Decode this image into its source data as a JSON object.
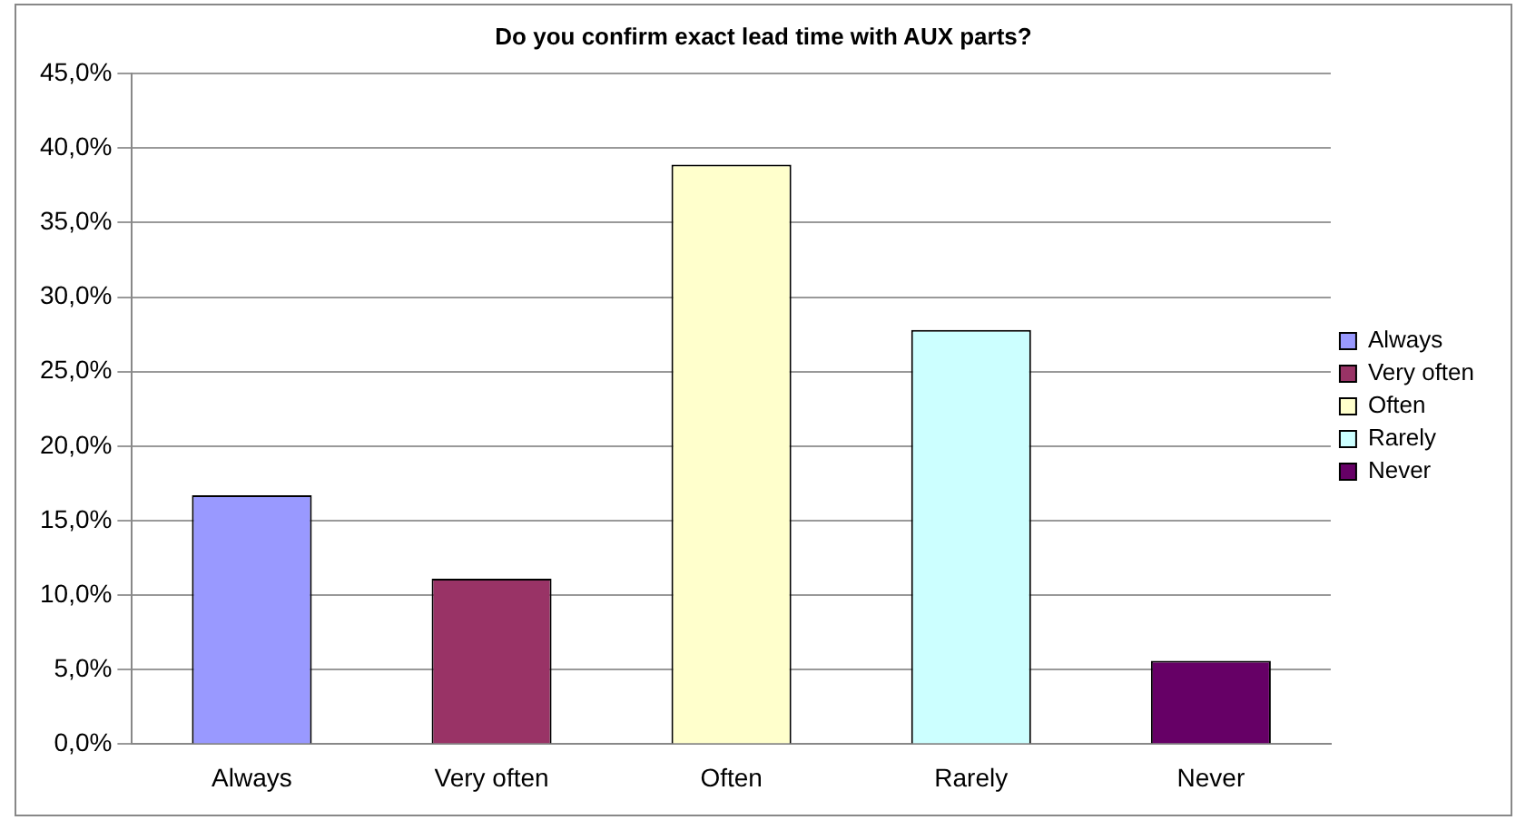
{
  "chart_data": {
    "type": "bar",
    "title": "Do you confirm exact lead time with AUX parts?",
    "categories": [
      "Always",
      "Very often",
      "Often",
      "Rarely",
      "Never"
    ],
    "series": [
      {
        "name": "Always",
        "color": "#9999ff",
        "values": [
          16.7,
          null,
          null,
          null,
          null
        ]
      },
      {
        "name": "Very often",
        "color": "#993366",
        "values": [
          null,
          11.1,
          null,
          null,
          null
        ]
      },
      {
        "name": "Often",
        "color": "#ffffcc",
        "values": [
          null,
          null,
          38.9,
          null,
          null
        ]
      },
      {
        "name": "Rarely",
        "color": "#ccffff",
        "values": [
          null,
          null,
          null,
          27.8,
          null
        ]
      },
      {
        "name": "Never",
        "color": "#660066",
        "values": [
          null,
          null,
          null,
          null,
          5.6
        ]
      }
    ],
    "ylim": [
      0,
      45
    ],
    "yticks": [
      {
        "value": 0,
        "label": "0,0%"
      },
      {
        "value": 5,
        "label": "5,0%"
      },
      {
        "value": 10,
        "label": "10,0%"
      },
      {
        "value": 15,
        "label": "15,0%"
      },
      {
        "value": 20,
        "label": "20,0%"
      },
      {
        "value": 25,
        "label": "25,0%"
      },
      {
        "value": 30,
        "label": "30,0%"
      },
      {
        "value": 35,
        "label": "35,0%"
      },
      {
        "value": 40,
        "label": "40,0%"
      },
      {
        "value": 45,
        "label": "45,0%"
      }
    ],
    "grid": "y",
    "legend": "right"
  }
}
